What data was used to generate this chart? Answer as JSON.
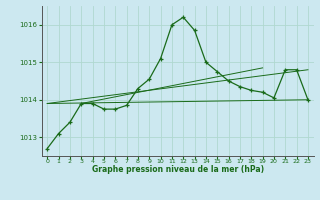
{
  "title": "Graphe pression niveau de la mer (hPa)",
  "bg_color": "#cce8f0",
  "line_color": "#1a6b1a",
  "marker_color": "#1a6b1a",
  "grid_color": "#b0d8d0",
  "xlim": [
    -0.5,
    23.5
  ],
  "ylim": [
    1012.5,
    1016.5
  ],
  "yticks": [
    1013,
    1014,
    1015,
    1016
  ],
  "xticks": [
    0,
    1,
    2,
    3,
    4,
    5,
    6,
    7,
    8,
    9,
    10,
    11,
    12,
    13,
    14,
    15,
    16,
    17,
    18,
    19,
    20,
    21,
    22,
    23
  ],
  "series1_x": [
    0,
    1,
    2,
    3,
    4,
    5,
    6,
    7,
    8,
    9,
    10,
    11,
    12,
    13,
    14,
    15,
    16,
    17,
    18,
    19,
    20,
    21,
    22,
    23
  ],
  "series1_y": [
    1012.7,
    1013.1,
    1013.4,
    1013.9,
    1013.9,
    1013.75,
    1013.75,
    1013.85,
    1014.3,
    1014.55,
    1015.1,
    1016.0,
    1016.2,
    1015.85,
    1015.0,
    1014.75,
    1014.5,
    1014.35,
    1014.25,
    1014.2,
    1014.05,
    1014.8,
    1014.8,
    1014.0
  ],
  "series2_x": [
    0,
    23
  ],
  "series2_y": [
    1013.9,
    1014.8
  ],
  "series3_x": [
    0,
    23
  ],
  "series3_y": [
    1013.9,
    1014.0
  ],
  "series4_x": [
    3,
    19
  ],
  "series4_y": [
    1013.9,
    1014.85
  ]
}
